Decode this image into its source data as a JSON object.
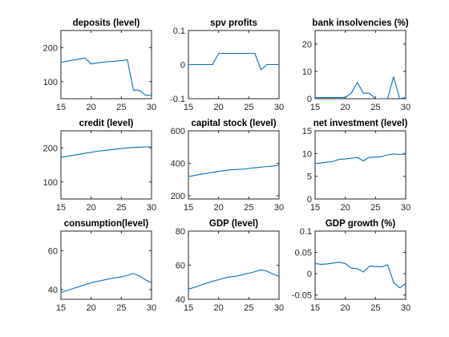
{
  "line_color": "#0072bd",
  "chart_data": [
    {
      "type": "line",
      "title": "deposits (level)",
      "xlim": [
        15,
        30
      ],
      "ylim": [
        50,
        250
      ],
      "xticks": [
        15,
        20,
        25,
        30
      ],
      "yticks": [
        100,
        200
      ],
      "ytick_labels": [
        "100",
        "200"
      ],
      "x": [
        15,
        16,
        17,
        18,
        19,
        20,
        21,
        22,
        23,
        24,
        25,
        26,
        27,
        28,
        29,
        30
      ],
      "series": [
        {
          "values": [
            157,
            160,
            163,
            166,
            169,
            152,
            155,
            157,
            159,
            160,
            162,
            164,
            75,
            75,
            60,
            60
          ]
        }
      ]
    },
    {
      "type": "line",
      "title": "spv profits",
      "xlim": [
        15,
        30
      ],
      "ylim": [
        -0.1,
        0.1
      ],
      "xticks": [
        15,
        20,
        25,
        30
      ],
      "yticks": [
        -0.1,
        0,
        0.1
      ],
      "ytick_labels": [
        "-0.1",
        "0",
        "0.1"
      ],
      "x": [
        15,
        16,
        17,
        18,
        19,
        20,
        21,
        22,
        23,
        24,
        25,
        26,
        27,
        28,
        29,
        30
      ],
      "series": [
        {
          "values": [
            0,
            0,
            0,
            0,
            0,
            0.033,
            0.033,
            0.033,
            0.033,
            0.033,
            0.033,
            0.033,
            -0.015,
            0,
            0,
            0
          ]
        }
      ]
    },
    {
      "type": "line",
      "title": "bank insolvencies (%)",
      "xlim": [
        15,
        30
      ],
      "ylim": [
        0,
        25
      ],
      "xticks": [
        15,
        20,
        25,
        30
      ],
      "yticks": [
        0,
        10,
        20
      ],
      "ytick_labels": [
        "0",
        "10",
        "20"
      ],
      "x": [
        15,
        16,
        17,
        18,
        19,
        20,
        21,
        22,
        23,
        24,
        25,
        26,
        27,
        28,
        29,
        30
      ],
      "series": [
        {
          "values": [
            0.4,
            0.4,
            0.4,
            0.4,
            0.4,
            0.4,
            2,
            6,
            2,
            2,
            0,
            0,
            0,
            8,
            0,
            0.4
          ]
        }
      ]
    },
    {
      "type": "line",
      "title": "credit (level)",
      "xlim": [
        15,
        30
      ],
      "ylim": [
        50,
        250
      ],
      "xticks": [
        15,
        20,
        25,
        30
      ],
      "yticks": [
        100,
        200
      ],
      "ytick_labels": [
        "100",
        "200"
      ],
      "x": [
        15,
        16,
        17,
        18,
        19,
        20,
        21,
        22,
        23,
        24,
        25,
        26,
        27,
        28,
        29,
        30
      ],
      "series": [
        {
          "values": [
            172,
            175,
            178,
            181,
            184,
            187,
            190,
            192,
            194,
            196,
            198,
            200,
            201,
            202,
            203,
            203
          ]
        }
      ]
    },
    {
      "type": "line",
      "title": "capital stock (level)",
      "xlim": [
        15,
        30
      ],
      "ylim": [
        180,
        600
      ],
      "xticks": [
        15,
        20,
        25,
        30
      ],
      "yticks": [
        200,
        400,
        600
      ],
      "ytick_labels": [
        "200",
        "400",
        "600"
      ],
      "x": [
        15,
        16,
        17,
        18,
        19,
        20,
        21,
        22,
        23,
        24,
        25,
        26,
        27,
        28,
        29,
        30
      ],
      "series": [
        {
          "values": [
            318,
            325,
            332,
            338,
            344,
            350,
            355,
            360,
            362,
            364,
            368,
            372,
            376,
            380,
            383,
            388
          ]
        }
      ]
    },
    {
      "type": "line",
      "title": "net investment (level)",
      "xlim": [
        15,
        30
      ],
      "ylim": [
        0,
        15
      ],
      "xticks": [
        15,
        20,
        25,
        30
      ],
      "yticks": [
        0,
        5,
        10,
        15
      ],
      "ytick_labels": [
        "0",
        "5",
        "10",
        "15"
      ],
      "x": [
        15,
        16,
        17,
        18,
        19,
        20,
        21,
        22,
        23,
        24,
        25,
        26,
        27,
        28,
        29,
        30
      ],
      "series": [
        {
          "values": [
            7.8,
            7.9,
            8.1,
            8.3,
            8.7,
            8.8,
            9.0,
            9.1,
            8.4,
            9.2,
            9.2,
            9.3,
            9.7,
            9.9,
            9.8,
            9.9
          ]
        }
      ]
    },
    {
      "type": "line",
      "title": "consumption(level)",
      "xlim": [
        15,
        30
      ],
      "ylim": [
        35,
        70
      ],
      "xticks": [
        15,
        20,
        25,
        30
      ],
      "yticks": [
        40,
        60
      ],
      "ytick_labels": [
        "40",
        "60"
      ],
      "x": [
        15,
        16,
        17,
        18,
        19,
        20,
        21,
        22,
        23,
        24,
        25,
        26,
        27,
        28,
        29,
        30
      ],
      "series": [
        {
          "values": [
            38.5,
            39.5,
            40.5,
            41.5,
            42.5,
            43.5,
            44.2,
            44.8,
            45.5,
            46.0,
            46.5,
            47.3,
            48.2,
            47.0,
            45.0,
            43.5
          ]
        }
      ]
    },
    {
      "type": "line",
      "title": "GDP (level)",
      "xlim": [
        15,
        30
      ],
      "ylim": [
        40,
        80
      ],
      "xticks": [
        15,
        20,
        25,
        30
      ],
      "yticks": [
        40,
        60,
        80
      ],
      "ytick_labels": [
        "40",
        "60",
        "80"
      ],
      "x": [
        15,
        16,
        17,
        18,
        19,
        20,
        21,
        22,
        23,
        24,
        25,
        26,
        27,
        28,
        29,
        30
      ],
      "series": [
        {
          "values": [
            46,
            47,
            48.2,
            49.5,
            50.5,
            51.5,
            52.5,
            53.2,
            53.6,
            54.5,
            55.3,
            56.2,
            57.3,
            56.5,
            54.8,
            53.5
          ]
        }
      ]
    },
    {
      "type": "line",
      "title": "GDP growth (%)",
      "xlim": [
        15,
        30
      ],
      "ylim": [
        -0.06,
        0.1
      ],
      "xticks": [
        15,
        20,
        25,
        30
      ],
      "yticks": [
        -0.05,
        0,
        0.05,
        0.1
      ],
      "ytick_labels": [
        "-0.05",
        "0",
        "0.05",
        "0.1"
      ],
      "x": [
        15,
        16,
        17,
        18,
        19,
        20,
        21,
        22,
        23,
        24,
        25,
        26,
        27,
        28,
        29,
        30
      ],
      "series": [
        {
          "values": [
            0.024,
            0.022,
            0.023,
            0.025,
            0.027,
            0.024,
            0.013,
            0.012,
            0.004,
            0.018,
            0.017,
            0.016,
            0.021,
            -0.02,
            -0.033,
            -0.023
          ]
        }
      ]
    }
  ]
}
